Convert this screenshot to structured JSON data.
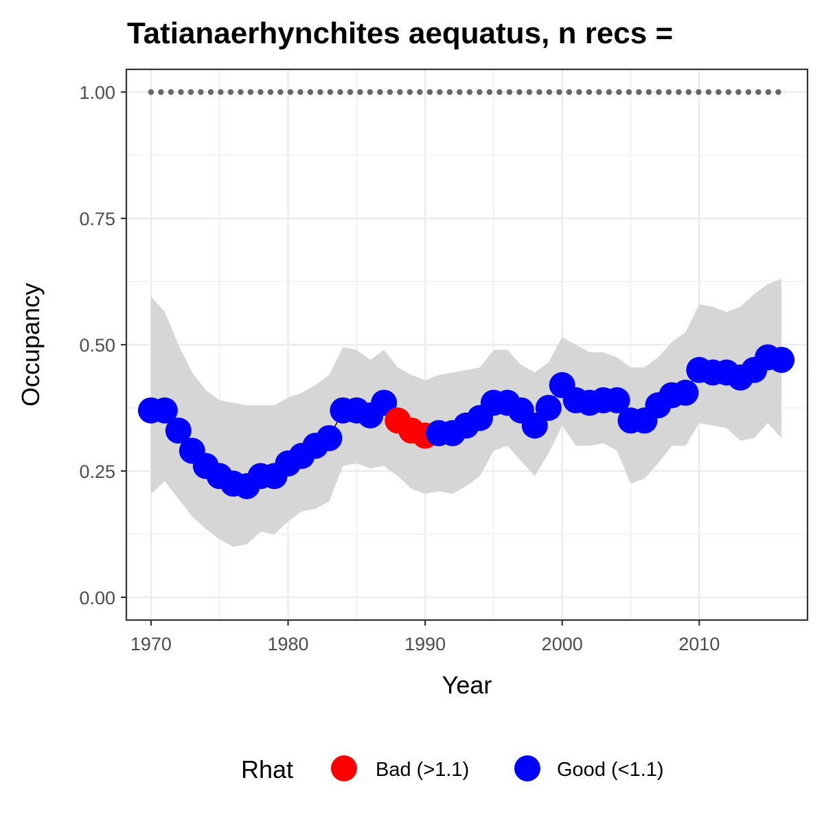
{
  "chart_data": {
    "type": "line",
    "title": "Tatianaerhynchites aequatus, n recs =",
    "xlabel": "Year",
    "ylabel": "Occupancy",
    "xlim": [
      1968.2,
      2017.9
    ],
    "ylim": [
      -0.045,
      1.045
    ],
    "x_ticks": [
      1970,
      1980,
      1990,
      2000,
      2010
    ],
    "x_tick_labels": [
      "1970",
      "1980",
      "1990",
      "2000",
      "2010"
    ],
    "y_ticks": [
      0,
      0.25,
      0.5,
      0.75,
      1.0
    ],
    "y_tick_labels": [
      "0.00",
      "0.25",
      "0.50",
      "0.75",
      "1.00"
    ],
    "grid": true,
    "years": [
      1970,
      1971,
      1972,
      1973,
      1974,
      1975,
      1976,
      1977,
      1978,
      1979,
      1980,
      1981,
      1982,
      1983,
      1984,
      1985,
      1986,
      1987,
      1988,
      1989,
      1990,
      1991,
      1992,
      1993,
      1994,
      1995,
      1996,
      1997,
      1998,
      1999,
      2000,
      2001,
      2002,
      2003,
      2004,
      2005,
      2006,
      2007,
      2008,
      2009,
      2010,
      2011,
      2012,
      2013,
      2014,
      2015,
      2016
    ],
    "occupancy": [
      0.37,
      0.37,
      0.33,
      0.29,
      0.26,
      0.24,
      0.225,
      0.22,
      0.24,
      0.24,
      0.265,
      0.28,
      0.3,
      0.315,
      0.37,
      0.37,
      0.36,
      0.385,
      0.35,
      0.33,
      0.32,
      0.325,
      0.325,
      0.34,
      0.355,
      0.385,
      0.385,
      0.37,
      0.34,
      0.375,
      0.42,
      0.39,
      0.385,
      0.39,
      0.39,
      0.35,
      0.35,
      0.38,
      0.4,
      0.405,
      0.45,
      0.445,
      0.445,
      0.435,
      0.45,
      0.475,
      0.47
    ],
    "lower": [
      0.205,
      0.23,
      0.195,
      0.16,
      0.135,
      0.115,
      0.1,
      0.105,
      0.13,
      0.125,
      0.15,
      0.17,
      0.175,
      0.19,
      0.26,
      0.265,
      0.255,
      0.26,
      0.24,
      0.215,
      0.205,
      0.21,
      0.205,
      0.22,
      0.24,
      0.29,
      0.3,
      0.27,
      0.24,
      0.285,
      0.34,
      0.3,
      0.3,
      0.305,
      0.29,
      0.225,
      0.235,
      0.265,
      0.3,
      0.3,
      0.345,
      0.34,
      0.335,
      0.31,
      0.315,
      0.345,
      0.315
    ],
    "upper": [
      0.595,
      0.565,
      0.5,
      0.445,
      0.41,
      0.39,
      0.385,
      0.38,
      0.38,
      0.38,
      0.395,
      0.405,
      0.42,
      0.44,
      0.495,
      0.49,
      0.47,
      0.49,
      0.455,
      0.44,
      0.43,
      0.44,
      0.445,
      0.45,
      0.455,
      0.49,
      0.49,
      0.46,
      0.445,
      0.465,
      0.515,
      0.5,
      0.485,
      0.485,
      0.475,
      0.455,
      0.455,
      0.475,
      0.505,
      0.525,
      0.58,
      0.575,
      0.565,
      0.575,
      0.6,
      0.62,
      0.63
    ],
    "rhat_status": [
      "Good",
      "Good",
      "Good",
      "Good",
      "Good",
      "Good",
      "Good",
      "Good",
      "Good",
      "Good",
      "Good",
      "Good",
      "Good",
      "Good",
      "Good",
      "Good",
      "Good",
      "Good",
      "Bad",
      "Bad",
      "Bad",
      "Good",
      "Good",
      "Good",
      "Good",
      "Good",
      "Good",
      "Good",
      "Good",
      "Good",
      "Good",
      "Good",
      "Good",
      "Good",
      "Good",
      "Good",
      "Good",
      "Good",
      "Good",
      "Good",
      "Good",
      "Good",
      "Good",
      "Good",
      "Good",
      "Good",
      "Good"
    ],
    "reference_line": {
      "y": 1.0,
      "x_range": [
        1970,
        2016
      ],
      "style": "dotted",
      "color": "#666666"
    },
    "band_color": "#d4d4d4",
    "colors": {
      "Bad": "#ff0000",
      "Good": "#0000ff"
    },
    "legend": {
      "title": "Rhat",
      "position": "bottom",
      "entries": [
        {
          "key": "Bad",
          "label": "Bad (>1.1)"
        },
        {
          "key": "Good",
          "label": "Good (<1.1)"
        }
      ]
    }
  }
}
